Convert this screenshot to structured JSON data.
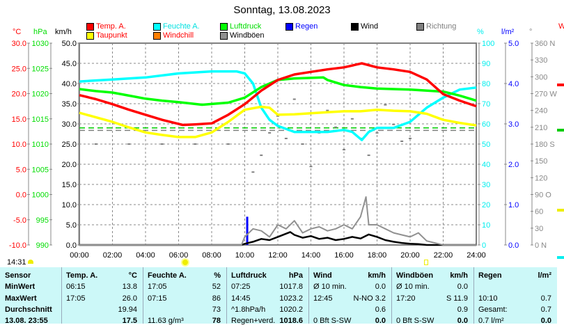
{
  "title": "Sonntag, 13.08.2023",
  "units": {
    "temp": "°C",
    "pressure": "hPa",
    "speed": "km/h",
    "humidity": "%",
    "rain": "l/m²",
    "direction": "°",
    "cut_right": "W"
  },
  "legend": [
    {
      "label": "Temp. A.",
      "color": "#ff0000",
      "text_color": "#ff0000"
    },
    {
      "label": "Feuchte A.",
      "color": "#00ffff",
      "text_color": "#00e0e0"
    },
    {
      "label": "Luftdruck",
      "color": "#00ff00",
      "text_color": "#00dd00"
    },
    {
      "label": "Regen",
      "color": "#0000ff",
      "text_color": "#0000ff"
    },
    {
      "label": "Wind",
      "color": "#000000",
      "text_color": "#000000"
    },
    {
      "label": "Richtung",
      "color": "#808080",
      "text_color": "#808080"
    },
    {
      "label": "Taupunkt",
      "color": "#ffff00",
      "text_color": "#ff0000"
    },
    {
      "label": "Windchill",
      "color": "#ff8000",
      "text_color": "#ff0000"
    },
    {
      "label": "Windböen",
      "color": "#909090",
      "text_color": "#000000"
    }
  ],
  "time_now": "14:31",
  "chart_data": {
    "type": "line",
    "title": "Sonntag, 13.08.2023",
    "x_ticks": [
      "00:00",
      "02:00",
      "04:00",
      "06:00",
      "08:00",
      "10:00",
      "12:00",
      "14:00",
      "16:00",
      "18:00",
      "20:00",
      "22:00",
      "24:00"
    ],
    "xlim": [
      0,
      24
    ],
    "axes": {
      "temp": {
        "range": [
          -10,
          30
        ],
        "ticks": [
          "30.0",
          "25.0",
          "20.0",
          "15.0",
          "10.0",
          "5.0",
          "0.0",
          "-5.0",
          "-10.0"
        ],
        "color": "#ff0000"
      },
      "pressure": {
        "range": [
          990,
          1030
        ],
        "ticks": [
          "1030",
          "1025",
          "1020",
          "1015",
          "1010",
          "1005",
          "1000",
          "995",
          "990"
        ],
        "color": "#00ee00"
      },
      "speed": {
        "range": [
          0,
          50
        ],
        "ticks": [
          "50.0",
          "45.0",
          "40.0",
          "35.0",
          "30.0",
          "25.0",
          "20.0",
          "15.0",
          "10.0",
          "5.0",
          "0.0"
        ],
        "color": "#000000"
      },
      "humidity": {
        "range": [
          0,
          100
        ],
        "ticks": [
          "100",
          "90",
          "80",
          "70",
          "60",
          "50",
          "40",
          "30",
          "20",
          "10",
          "0"
        ],
        "color": "#00ffff"
      },
      "rain": {
        "range": [
          0,
          5
        ],
        "ticks": [
          "5.0",
          "4.0",
          "3.0",
          "2.0",
          "1.0",
          "0.0"
        ],
        "color": "#0000ff"
      },
      "direction": {
        "range": [
          0,
          360
        ],
        "ticks": [
          "360 N",
          "330",
          "300",
          "270 W",
          "240",
          "210",
          "180 S",
          "150",
          "120",
          "90  O",
          "60",
          "30",
          "0   N"
        ],
        "color": "#808080"
      }
    },
    "series": [
      {
        "name": "Feuchte A.",
        "axis": "humidity",
        "color": "#00ffff",
        "x": [
          0,
          2,
          4,
          6,
          8,
          9.5,
          10,
          10.5,
          11,
          11.5,
          12,
          13,
          14,
          15,
          16,
          16.5,
          17.08,
          17.5,
          18,
          19,
          20,
          21,
          22,
          23,
          24
        ],
        "y": [
          81,
          82,
          83,
          85,
          86,
          86,
          85,
          80,
          68,
          62,
          59,
          56,
          56,
          56,
          57,
          56,
          52,
          56,
          58,
          58,
          61,
          68,
          73,
          77,
          78
        ]
      },
      {
        "name": "Luftdruck",
        "axis": "pressure",
        "color": "#00ff00",
        "x": [
          0,
          1,
          2,
          3,
          4,
          5,
          6,
          7.42,
          9,
          10,
          11,
          12,
          13,
          14.75,
          15,
          16,
          17,
          18,
          20,
          22,
          23,
          24
        ],
        "y": [
          1020.9,
          1020.5,
          1020.2,
          1019.6,
          1019,
          1018.6,
          1018.3,
          1017.8,
          1018.2,
          1019.2,
          1021.3,
          1022.7,
          1023,
          1023.2,
          1022.7,
          1021.7,
          1021.3,
          1021,
          1020.8,
          1020.4,
          1019.6,
          1018.6
        ]
      },
      {
        "name": "Taupunkt",
        "axis": "temp",
        "color": "#ffff00",
        "x": [
          0,
          1,
          2,
          3,
          4,
          5,
          6,
          7,
          8,
          9,
          10,
          11,
          11.5,
          12,
          13,
          14,
          15,
          16,
          17,
          18,
          19,
          20,
          21,
          22,
          23,
          24
        ],
        "y": [
          16.2,
          15.3,
          14.4,
          13.3,
          12.3,
          11.8,
          11.4,
          11.4,
          12.3,
          14.4,
          16.8,
          17.4,
          17.2,
          15.8,
          15.9,
          16.1,
          16.3,
          16.5,
          16.5,
          16.8,
          16.6,
          16.5,
          16.0,
          14.8,
          14.2,
          13.7
        ]
      },
      {
        "name": "Temp. A.",
        "axis": "temp",
        "color": "#ff0000",
        "x": [
          0,
          1,
          2,
          3,
          4,
          5,
          6.25,
          7,
          8,
          9,
          10,
          11,
          12,
          13,
          14,
          15,
          16,
          17.08,
          18,
          19,
          20,
          21,
          22,
          23,
          24
        ],
        "y": [
          19.7,
          18.9,
          17.9,
          16.8,
          15.8,
          14.8,
          13.8,
          13.9,
          14.1,
          15.8,
          17.9,
          20.6,
          22.7,
          23.8,
          24.3,
          24.8,
          25.2,
          26.0,
          25.2,
          24.8,
          24.3,
          22.8,
          19.9,
          18.6,
          17.5
        ]
      },
      {
        "name": "Wind",
        "axis": "speed",
        "color": "#000000",
        "x": [
          0,
          9.8,
          10,
          10.5,
          11,
          11.5,
          12,
          12.75,
          13,
          13.5,
          14,
          14.5,
          15,
          15.5,
          16,
          16.5,
          17,
          17.5,
          18,
          18.5,
          19,
          19.5,
          20,
          20.5,
          21,
          22,
          24
        ],
        "y": [
          0,
          0,
          0.3,
          0.8,
          1.5,
          1.2,
          2.0,
          3.2,
          2.5,
          1.8,
          2.2,
          1.5,
          1.8,
          1.2,
          1.5,
          2.0,
          1.6,
          2.6,
          2.0,
          1.2,
          0.8,
          0.5,
          0.3,
          0.2,
          0,
          0,
          0
        ]
      },
      {
        "name": "Windböen",
        "axis": "speed",
        "color": "#909090",
        "x": [
          0,
          9.8,
          10,
          10.5,
          11,
          11.5,
          12,
          12.5,
          13,
          13.5,
          14,
          14.5,
          15,
          15.5,
          16,
          16.5,
          17,
          17.33,
          17.5,
          18,
          18.5,
          19,
          19.5,
          20,
          20.5,
          21,
          22,
          24
        ],
        "y": [
          0,
          0,
          2,
          4,
          3.5,
          2,
          5,
          4,
          6,
          3,
          4,
          4.5,
          3.5,
          4,
          5,
          4,
          7,
          11.9,
          5,
          5,
          4,
          3,
          2.5,
          2,
          3,
          1,
          0,
          0
        ]
      }
    ],
    "rain_bars": {
      "axis": "rain",
      "color": "#0000ff",
      "x": [
        10.17
      ],
      "y": [
        0.7
      ]
    },
    "direction_dots": {
      "axis": "direction",
      "color": "#808080",
      "x": [
        10.5,
        11,
        11.5,
        12,
        12.5,
        13,
        13.5,
        14,
        14.5,
        15,
        15.5,
        16,
        16.5,
        17,
        17.5,
        18,
        18.5,
        19,
        19.5,
        20,
        1,
        3,
        5,
        7,
        9
      ],
      "y": [
        130,
        160,
        200,
        230,
        190,
        260,
        180,
        140,
        200,
        240,
        210,
        170,
        225,
        190,
        160,
        200,
        250,
        215,
        185,
        190,
        180,
        180,
        180,
        180,
        180
      ]
    },
    "reference_lines": [
      {
        "axis": "temp",
        "value": 13.2,
        "color": "#00cc00"
      },
      {
        "axis": "temp",
        "value": 12.7,
        "color": "#808080"
      }
    ]
  },
  "table": {
    "headers": [
      [
        "Sensor",
        ""
      ],
      [
        "Temp. A.",
        "°C"
      ],
      [
        "Feuchte A.",
        "%"
      ],
      [
        "Luftdruck",
        "hPa"
      ],
      [
        "Wind",
        "km/h"
      ],
      [
        "Windböen",
        "km/h"
      ],
      [
        "Regen",
        "l/m²"
      ]
    ],
    "rows": [
      {
        "label": "MinWert",
        "cells": [
          [
            "06:15",
            "13.8"
          ],
          [
            "17:05",
            "52"
          ],
          [
            "07:25",
            "1017.8"
          ],
          [
            "Ø 10 min.",
            "0.0"
          ],
          [
            "Ø 10 min.",
            "0.0"
          ],
          [
            "",
            ""
          ]
        ]
      },
      {
        "label": "MaxWert",
        "cells": [
          [
            "17:05",
            "26.0"
          ],
          [
            "07:15",
            "86"
          ],
          [
            "14:45",
            "1023.2"
          ],
          [
            "12:45",
            "N-NO 3.2"
          ],
          [
            "17:20",
            "S 11.9"
          ],
          [
            "10:10",
            "0.7"
          ]
        ]
      },
      {
        "label": "Durchschnitt",
        "cells": [
          [
            "",
            "19.94"
          ],
          [
            "",
            "73"
          ],
          [
            "^1.8hPa/h",
            "1020.2"
          ],
          [
            "",
            "0.6"
          ],
          [
            "",
            "0.9"
          ],
          [
            "Gesamt:",
            "0.7"
          ]
        ]
      },
      {
        "label": "13.08. 23:55",
        "cells": [
          [
            "",
            "17.5"
          ],
          [
            "11.63 g/m³",
            "78"
          ],
          [
            "Regen+verd.",
            "1018.6"
          ],
          [
            "0 Bft S-SW",
            "0.0"
          ],
          [
            "0 Bft S-SW",
            "0.0"
          ],
          [
            "0.7 l/m²",
            "0.0"
          ]
        ]
      }
    ]
  }
}
